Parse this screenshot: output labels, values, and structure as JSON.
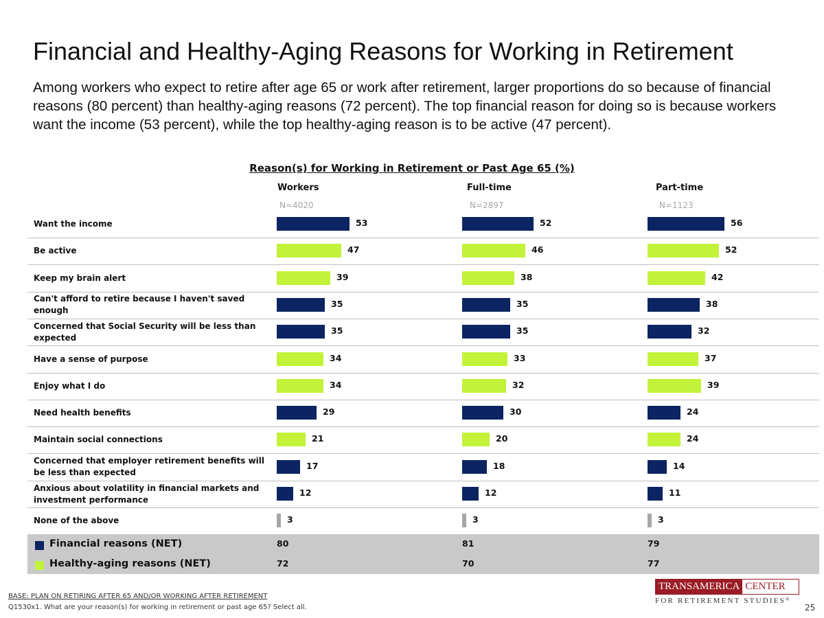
{
  "title": "Financial and Healthy-Aging Reasons for Working in Retirement",
  "subtitle": "Among workers who expect to retire after age 65 or work after retirement, larger proportions do so because of financial reasons (80 percent) than healthy-aging reasons (72 percent). The top financial reason for doing so is because workers want the income (53 percent), while the top healthy-aging reason is to be active (47 percent).",
  "colors": {
    "financial": "#0c2461",
    "healthy": "#c2f23a",
    "none": "#a6a6a6",
    "net_bg": "#c9c9c9"
  },
  "chart_data": {
    "type": "bar",
    "orientation": "horizontal",
    "title": "Reason(s) for Working in Retirement or Past Age 65 (%)",
    "xlim": [
      0,
      100
    ],
    "series": [
      {
        "name": "Workers",
        "n": "N=4020",
        "values": [
          53,
          47,
          39,
          35,
          35,
          34,
          34,
          29,
          21,
          17,
          12,
          3
        ],
        "net": {
          "financial": 80,
          "healthy": 72
        }
      },
      {
        "name": "Full-time",
        "n": "N=2897",
        "values": [
          52,
          46,
          38,
          35,
          35,
          33,
          32,
          30,
          20,
          18,
          12,
          3
        ],
        "net": {
          "financial": 81,
          "healthy": 70
        }
      },
      {
        "name": "Part-time",
        "n": "N=1123",
        "values": [
          56,
          52,
          42,
          38,
          32,
          37,
          39,
          24,
          24,
          14,
          11,
          3
        ],
        "net": {
          "financial": 79,
          "healthy": 77
        }
      }
    ],
    "categories": [
      {
        "label": "Want the income",
        "type": "financial"
      },
      {
        "label": "Be active",
        "type": "healthy"
      },
      {
        "label": "Keep my brain alert",
        "type": "healthy"
      },
      {
        "label": "Can't afford to retire because I haven't saved enough",
        "type": "financial"
      },
      {
        "label": "Concerned that Social Security will be less than expected",
        "type": "financial"
      },
      {
        "label": "Have a sense of purpose",
        "type": "healthy"
      },
      {
        "label": "Enjoy what I do",
        "type": "healthy"
      },
      {
        "label": "Need health benefits",
        "type": "financial"
      },
      {
        "label": "Maintain social connections",
        "type": "healthy"
      },
      {
        "label": "Concerned that employer retirement benefits will be less than expected",
        "type": "financial"
      },
      {
        "label": "Anxious about volatility in financial markets and investment performance",
        "type": "financial"
      },
      {
        "label": "None of the above",
        "type": "none"
      }
    ],
    "net_rows": [
      {
        "key": "financial",
        "label": "Financial reasons (NET)"
      },
      {
        "key": "healthy",
        "label": "Healthy-aging reasons (NET)"
      }
    ]
  },
  "footer": {
    "base": "BASE: PLAN ON RETIRING AFTER 65 AND/OR WORKING AFTER RETIREMENT",
    "question": "Q1530x1. What are your reason(s) for working in retirement or past age 65? Select all.",
    "page": "25"
  },
  "logo": {
    "line1_left": "TRANSAMERICA",
    "line1_right": "CENTER",
    "line2": "FOR RETIREMENT STUDIES",
    "mark": "®"
  }
}
